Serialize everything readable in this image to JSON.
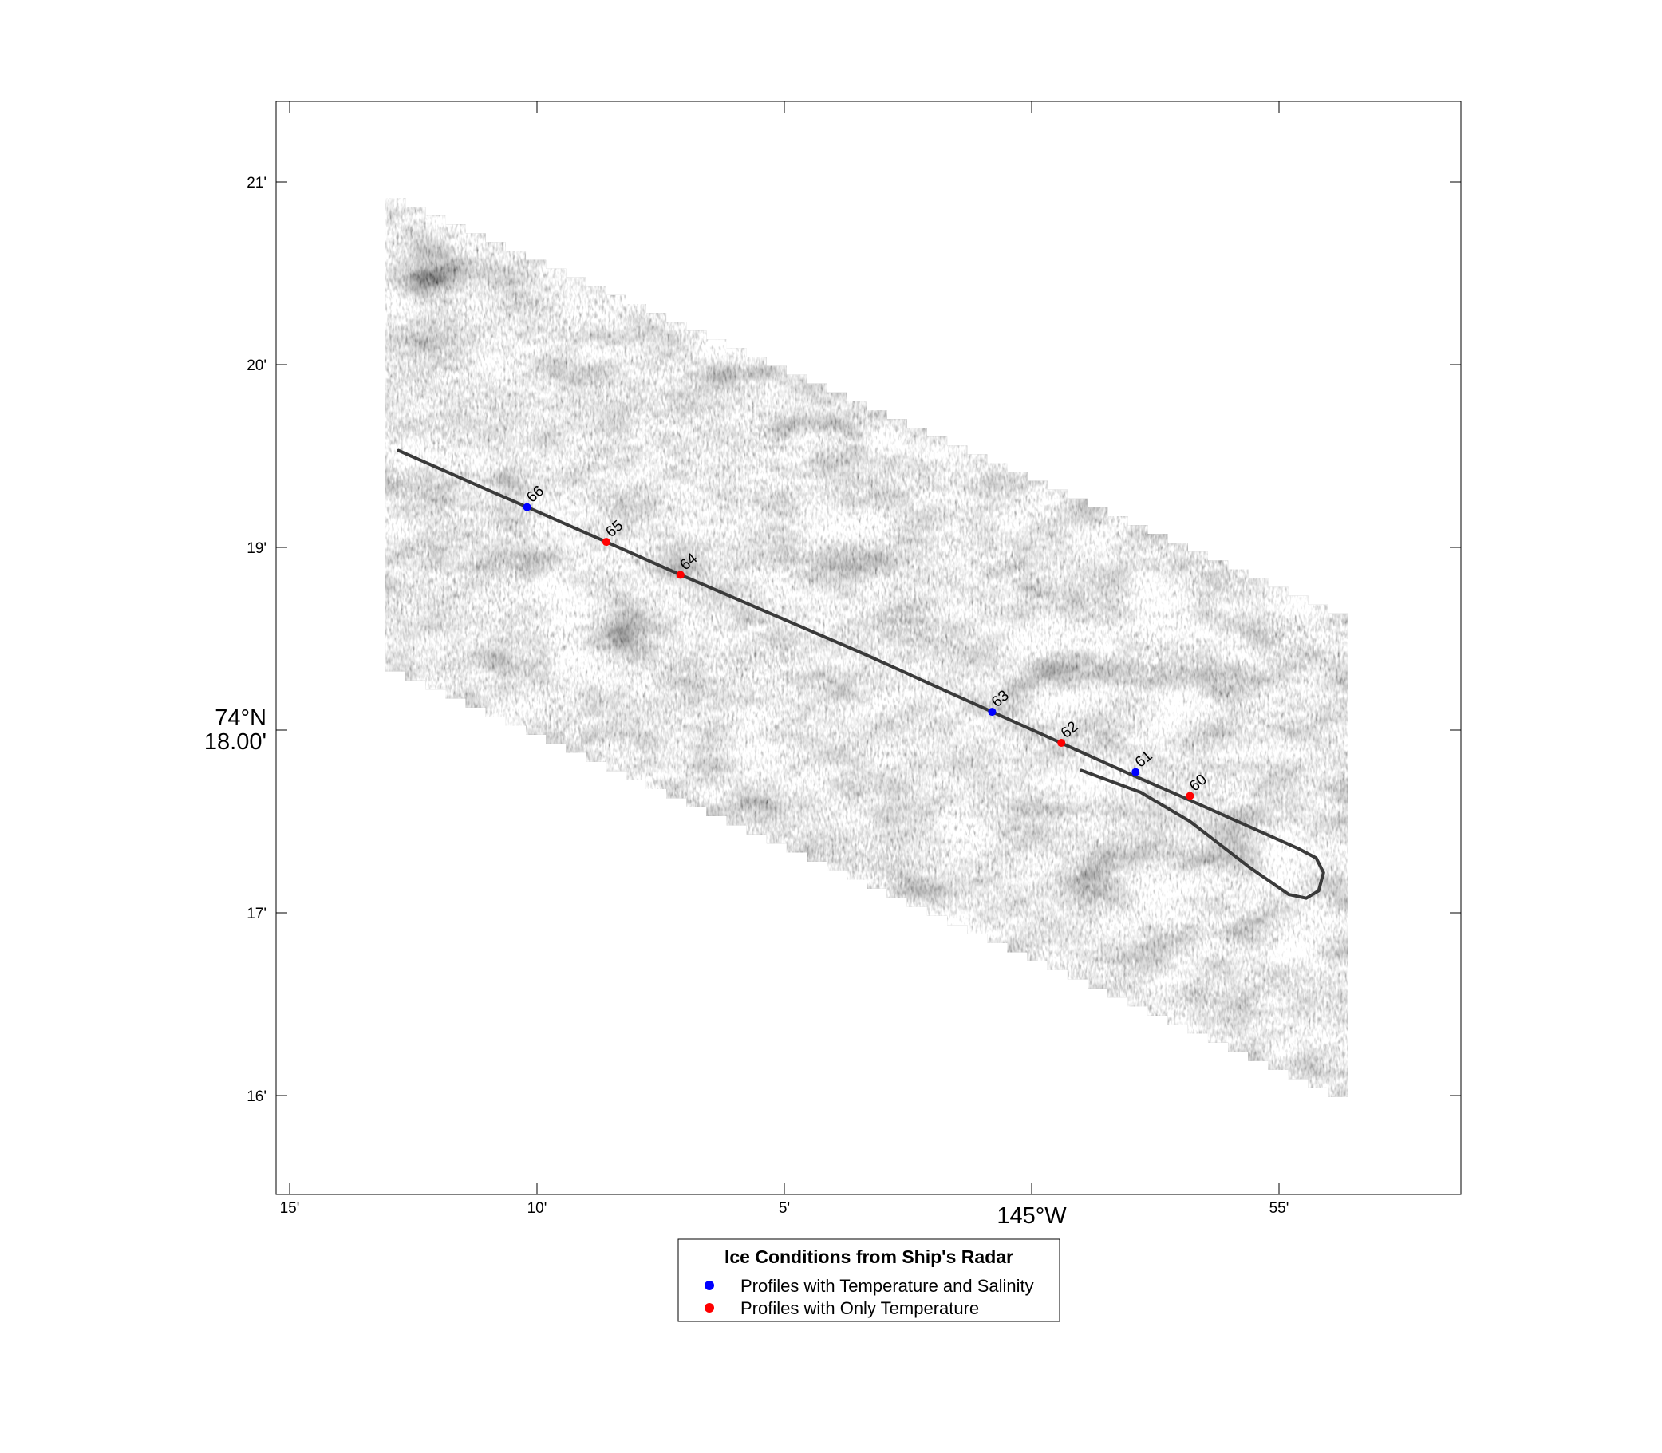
{
  "map": {
    "x_ticks": [
      {
        "lon_min": -15,
        "label": "15'",
        "major": false
      },
      {
        "lon_min": -10,
        "label": "10'",
        "major": false
      },
      {
        "lon_min": -5,
        "label": "5'",
        "major": false
      },
      {
        "lon_min": 0,
        "label": "145°W",
        "major": true
      },
      {
        "lon_min": 5,
        "label": "55'",
        "major": false
      }
    ],
    "y_ticks": [
      {
        "lat_min": 21,
        "label": "21'",
        "major": false
      },
      {
        "lat_min": 20,
        "label": "20'",
        "major": false
      },
      {
        "lat_min": 19,
        "label": "19'",
        "major": false
      },
      {
        "lat_min": 18,
        "label": "74°N",
        "label2": "18.00'",
        "major": true
      },
      {
        "lat_min": 17,
        "label": "17'",
        "major": false
      },
      {
        "lat_min": 16,
        "label": "16'",
        "major": false
      }
    ],
    "ship_track": [
      [
        -12.8,
        19.53
      ],
      [
        -10.2,
        19.22
      ],
      [
        -8.6,
        19.03
      ],
      [
        -7.1,
        18.85
      ],
      [
        -3.5,
        18.43
      ],
      [
        -0.8,
        18.1
      ],
      [
        1.9,
        17.77
      ],
      [
        3.0,
        17.64
      ],
      [
        5.4,
        17.35
      ],
      [
        5.75,
        17.3
      ],
      [
        5.9,
        17.22
      ],
      [
        5.8,
        17.12
      ],
      [
        5.55,
        17.08
      ],
      [
        5.2,
        17.1
      ],
      [
        4.4,
        17.25
      ],
      [
        3.2,
        17.5
      ],
      [
        2.2,
        17.66
      ],
      [
        1.0,
        17.78
      ]
    ],
    "stations": [
      {
        "id": "66",
        "lon_min": -10.2,
        "lat_min": 19.22,
        "type": "temp_salinity"
      },
      {
        "id": "65",
        "lon_min": -8.6,
        "lat_min": 19.03,
        "type": "temp_only"
      },
      {
        "id": "64",
        "lon_min": -7.1,
        "lat_min": 18.85,
        "type": "temp_only"
      },
      {
        "id": "63",
        "lon_min": -0.8,
        "lat_min": 18.1,
        "type": "temp_salinity"
      },
      {
        "id": "62",
        "lon_min": 0.6,
        "lat_min": 17.93,
        "type": "temp_only"
      },
      {
        "id": "61",
        "lon_min": 2.1,
        "lat_min": 17.77,
        "type": "temp_salinity"
      },
      {
        "id": "60",
        "lon_min": 3.2,
        "lat_min": 17.64,
        "type": "temp_only"
      }
    ]
  },
  "legend": {
    "title": "Ice Conditions from Ship's Radar",
    "items": [
      {
        "label": "Profiles with Temperature and Salinity",
        "color": "#0000ff"
      },
      {
        "label": "Profiles with Only Temperature",
        "color": "#ff0000"
      }
    ]
  },
  "colors": {
    "temp_salinity": "#0000ff",
    "temp_only": "#ff0000",
    "track": "#3a3a3a"
  }
}
